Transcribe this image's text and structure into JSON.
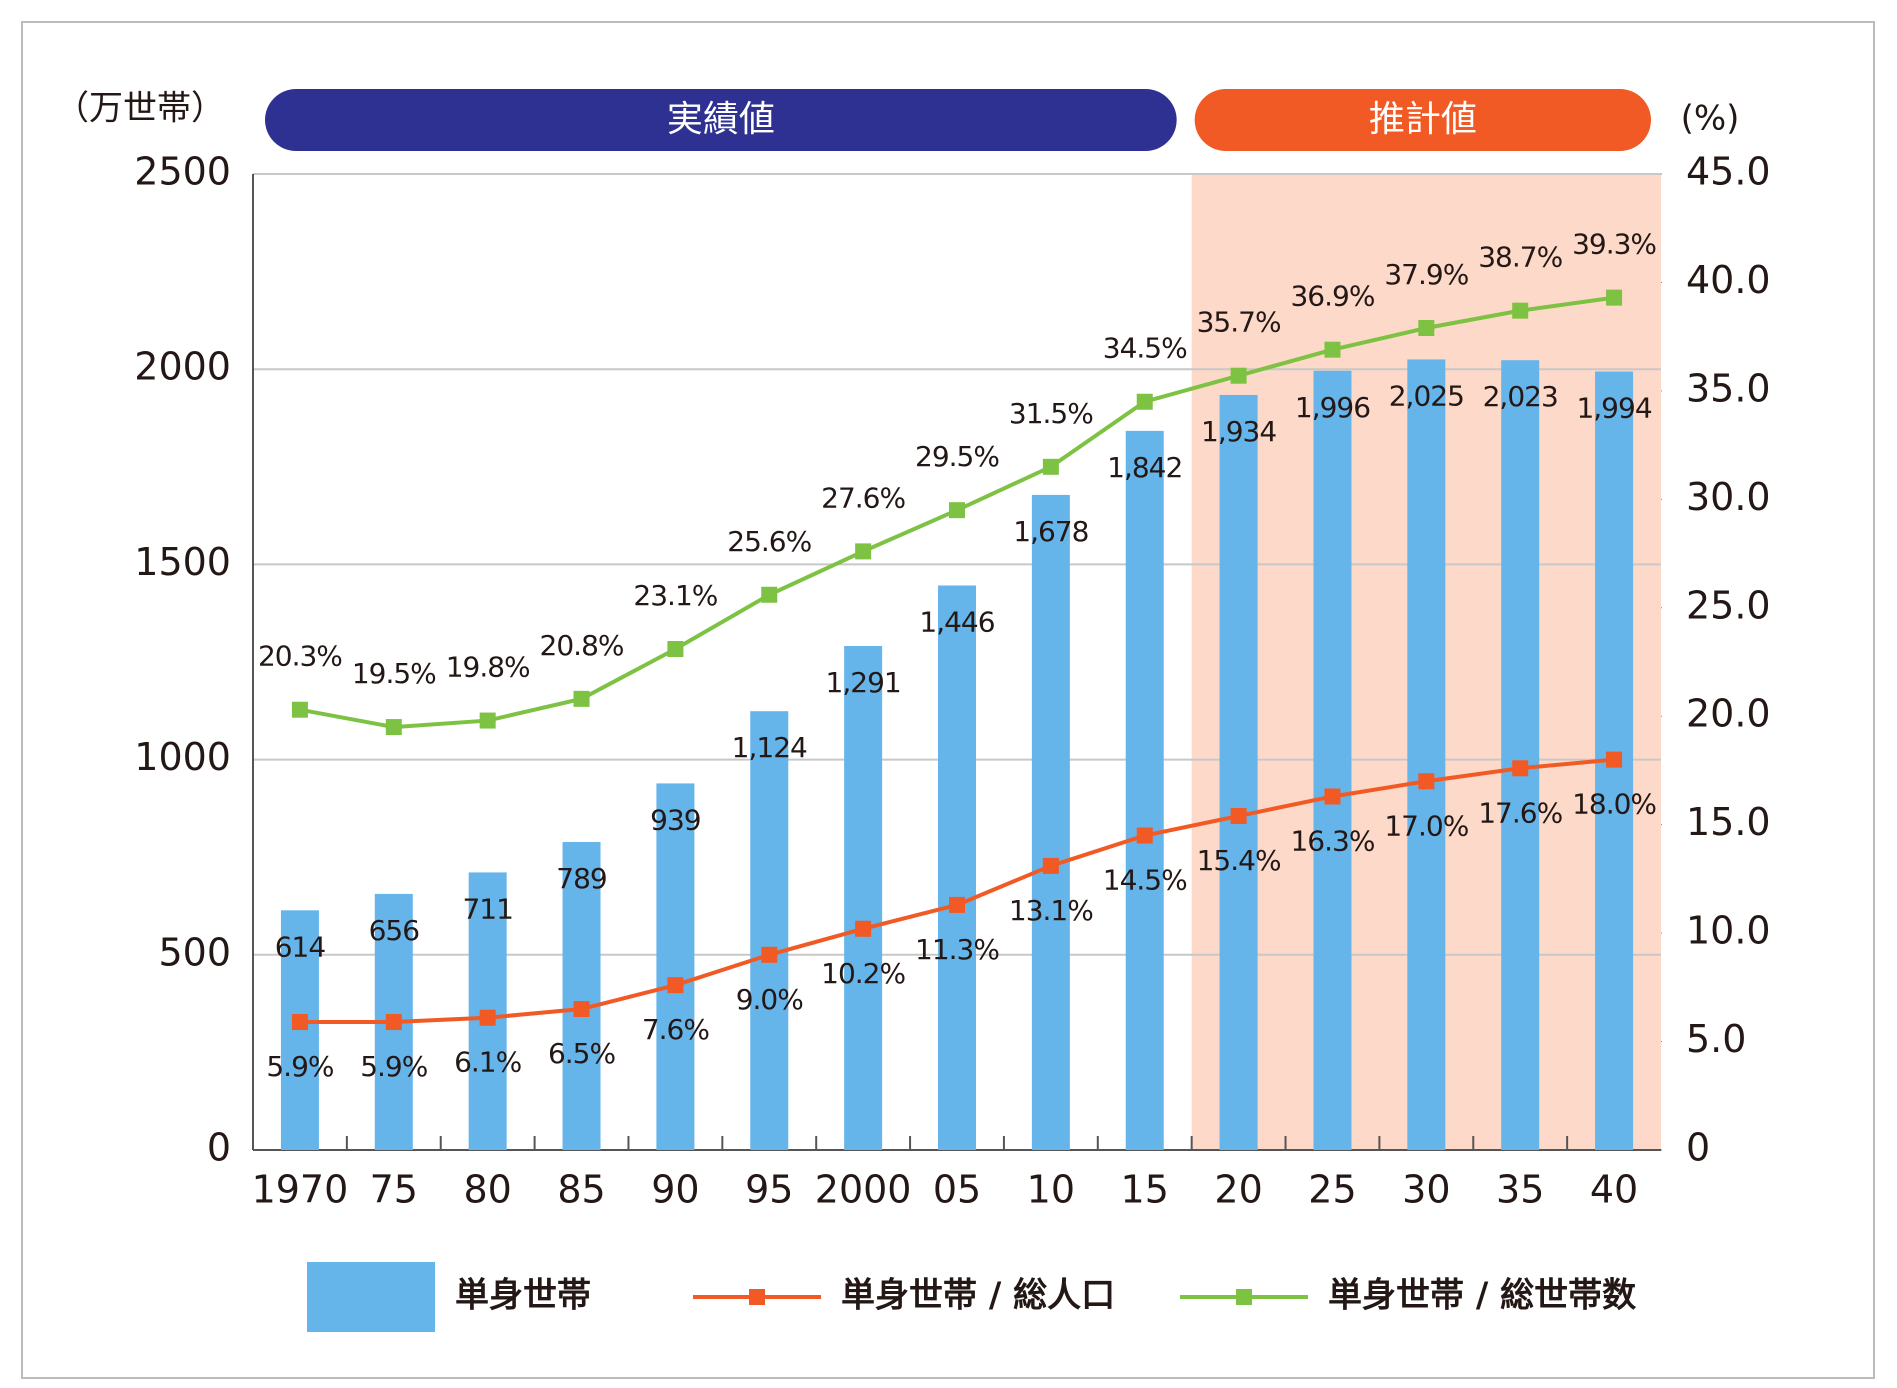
{
  "chart_data": {
    "type": "bar-line",
    "ylabel": "（万世帯）",
    "y2label": "(%)",
    "categories": [
      "1970",
      "75",
      "80",
      "85",
      "90",
      "95",
      "2000",
      "05",
      "10",
      "15",
      "20",
      "25",
      "30",
      "35",
      "40"
    ],
    "periods": [
      {
        "label": "実績値",
        "color": "#2e3192",
        "from": "1970",
        "to": "15"
      },
      {
        "label": "推計値",
        "color": "#f15a24",
        "from": "20",
        "to": "40",
        "shade": "#fdd9c9"
      }
    ],
    "series": [
      {
        "name": "単身世帯",
        "type": "bar",
        "color": "#66b5ea",
        "values": [
          614,
          656,
          711,
          789,
          939,
          1124,
          1291,
          1446,
          1678,
          1842,
          1934,
          1996,
          2025,
          2023,
          1994
        ],
        "value_labels": [
          "614",
          "656",
          "711",
          "789",
          "939",
          "1,124",
          "1,291",
          "1,446",
          "1,678",
          "1,842",
          "1,934",
          "1,996",
          "2,025",
          "2,023",
          "1,994"
        ]
      },
      {
        "name": "単身世帯 / 総人口",
        "type": "line",
        "axis": "y2",
        "color": "#f15a24",
        "label_side": "below",
        "values": [
          5.9,
          5.9,
          6.1,
          6.5,
          7.6,
          9.0,
          10.2,
          11.3,
          13.1,
          14.5,
          15.4,
          16.3,
          17.0,
          17.6,
          18.0
        ],
        "value_labels": [
          "5.9%",
          "5.9%",
          "6.1%",
          "6.5%",
          "7.6%",
          "9.0%",
          "10.2%",
          "11.3%",
          "13.1%",
          "14.5%",
          "15.4%",
          "16.3%",
          "17.0%",
          "17.6%",
          "18.0%"
        ]
      },
      {
        "name": "単身世帯 / 総世帯数",
        "type": "line",
        "axis": "y2",
        "color": "#7dc242",
        "label_side": "above",
        "values": [
          20.3,
          19.5,
          19.8,
          20.8,
          23.1,
          25.6,
          27.6,
          29.5,
          31.5,
          34.5,
          35.7,
          36.9,
          37.9,
          38.7,
          39.3
        ],
        "value_labels": [
          "20.3%",
          "19.5%",
          "19.8%",
          "20.8%",
          "23.1%",
          "25.6%",
          "27.6%",
          "29.5%",
          "31.5%",
          "34.5%",
          "35.7%",
          "36.9%",
          "37.9%",
          "38.7%",
          "39.3%"
        ]
      }
    ],
    "ylim": [
      0,
      2500
    ],
    "yticks": [
      0,
      500,
      1000,
      1500,
      2000,
      2500
    ],
    "y2lim": [
      0,
      45
    ],
    "y2ticks": [
      0,
      {
        "value": 5,
        "label": "5.0"
      },
      {
        "value": 10,
        "label": "10.0"
      },
      {
        "value": 15,
        "label": "15.0"
      },
      {
        "value": 20,
        "label": "20.0"
      },
      {
        "value": 25,
        "label": "25.0"
      },
      {
        "value": 30,
        "label": "30.0"
      },
      {
        "value": 35,
        "label": "35.0"
      },
      {
        "value": 40,
        "label": "40.0"
      },
      {
        "value": 45,
        "label": "45.0"
      }
    ],
    "grid": true,
    "legend": "bottom"
  }
}
